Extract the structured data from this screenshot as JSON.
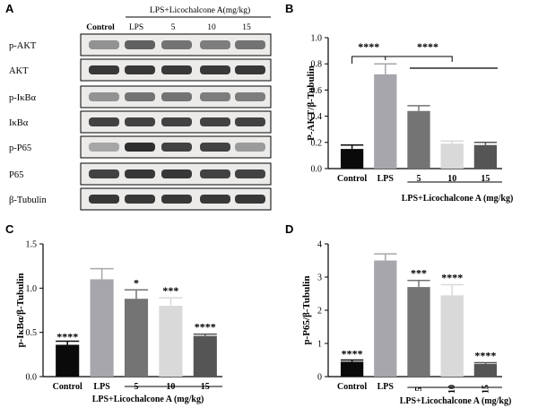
{
  "panels": {
    "a": "A",
    "b": "B",
    "c": "C",
    "d": "D"
  },
  "blot": {
    "header": "LPS+Licochalcone A(mg/kg)",
    "lanes": [
      "Control",
      "LPS",
      "5",
      "10",
      "15"
    ],
    "rows": [
      "p-AKT",
      "AKT",
      "p-IκBα",
      "IκBα",
      "p-P65",
      "P65",
      "β-Tubulin"
    ]
  },
  "colors": {
    "control": "#0a0a0a",
    "lps": "#a7a6ac",
    "dose5": "#747474",
    "dose10": "#d9d9d9",
    "dose15": "#555555"
  },
  "chart_data": [
    {
      "id": "B",
      "type": "bar",
      "categories": [
        "Control",
        "LPS",
        "5",
        "10",
        "15"
      ],
      "values": [
        0.15,
        0.72,
        0.44,
        0.19,
        0.18
      ],
      "errors": [
        0.03,
        0.08,
        0.04,
        0.02,
        0.02
      ],
      "ylabel": "P-AKT/β-Tubulin",
      "xlabel": "LPS+Licochalcone A (mg/kg)",
      "ylim": [
        0,
        1.0
      ],
      "yticks": [
        "0.0",
        "0.2",
        "0.4",
        "0.6",
        "0.8",
        "1.0"
      ],
      "bracket_labels": [
        "****",
        "****"
      ]
    },
    {
      "id": "C",
      "type": "bar",
      "categories": [
        "Control",
        "LPS",
        "5",
        "10",
        "15"
      ],
      "values": [
        0.36,
        1.1,
        0.88,
        0.8,
        0.46
      ],
      "errors": [
        0.04,
        0.12,
        0.1,
        0.09,
        0.02
      ],
      "ylabel": "p-IκBα/β-Tubulin",
      "xlabel": "LPS+Licochalcone A (mg/kg)",
      "ylim": [
        0,
        1.5
      ],
      "yticks": [
        "0.0",
        "0.5",
        "1.0",
        "1.5"
      ],
      "significance": [
        "****",
        "",
        "*",
        "***",
        "****"
      ]
    },
    {
      "id": "D",
      "type": "bar",
      "categories": [
        "Control",
        "LPS",
        "5",
        "10",
        "15"
      ],
      "values": [
        0.45,
        3.5,
        2.7,
        2.45,
        0.38
      ],
      "errors": [
        0.05,
        0.2,
        0.2,
        0.32,
        0.04
      ],
      "ylabel": "p-P65/β-Tubulin",
      "xlabel": "LPS+Licochalcone A (mg/kg)",
      "ylim": [
        0,
        4
      ],
      "yticks": [
        "0",
        "1",
        "2",
        "3",
        "4"
      ],
      "significance": [
        "****",
        "",
        "***",
        "****",
        "****"
      ]
    }
  ]
}
